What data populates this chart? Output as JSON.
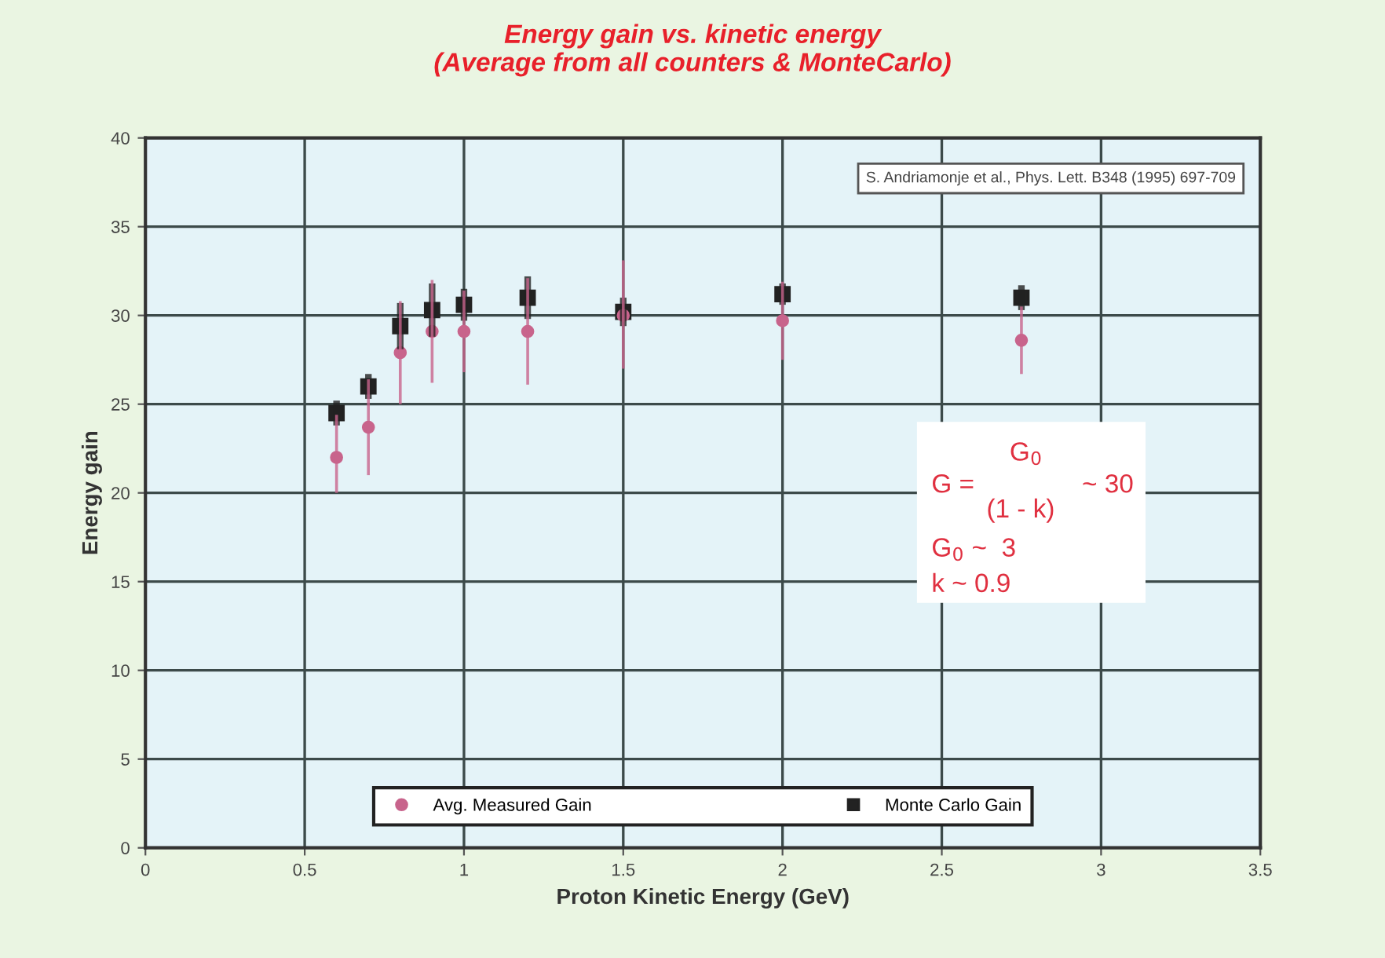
{
  "chart_data": {
    "type": "scatter",
    "title": "Energy gain vs. kinetic energy\n(Average from all counters & MonteCarlo)",
    "xlabel": "Proton Kinetic Energy (GeV)",
    "ylabel": "Energy gain",
    "x": [
      0.6,
      0.7,
      0.8,
      0.9,
      1.0,
      1.2,
      1.5,
      2.0,
      2.75
    ],
    "series": [
      {
        "name": "Avg. Measured Gain",
        "color": "#c8648c",
        "marker": "circle",
        "values": [
          22.0,
          23.7,
          27.9,
          29.1,
          29.1,
          29.1,
          30.0,
          29.7,
          28.6
        ],
        "errors": [
          [
            20.0,
            24.4
          ],
          [
            21.0,
            26.4
          ],
          [
            25.0,
            30.8
          ],
          [
            26.2,
            32.0
          ],
          [
            26.8,
            31.4
          ],
          [
            26.1,
            32.1
          ],
          [
            27.0,
            33.1
          ],
          [
            27.5,
            31.9
          ],
          [
            26.7,
            30.5
          ]
        ]
      },
      {
        "name": "Monte Carlo Gain",
        "color": "#222222",
        "marker": "square",
        "values": [
          24.5,
          26.0,
          29.4,
          30.3,
          30.6,
          31.0,
          30.2,
          31.2,
          31.0
        ],
        "errors": [
          0.7,
          0.7,
          1.3,
          1.5,
          0.9,
          1.2,
          0.8,
          0.6,
          0.7
        ]
      }
    ],
    "xlim": [
      0,
      3.5
    ],
    "xticks": [
      0,
      0.5,
      1,
      1.5,
      2,
      2.5,
      3,
      3.5
    ],
    "ylim": [
      0,
      40
    ],
    "yticks": [
      0,
      5,
      10,
      15,
      20,
      25,
      30,
      35,
      40
    ],
    "grid": true,
    "legend": "bottom",
    "annotations": [
      "S. Andriamonje et al., Phys. Lett. B348 (1995) 697-709",
      "G =",
      "G$_{0}$",
      "(1 - k)",
      "~ 30",
      "G$_{0}$ ~  3",
      "k ~ 0.9"
    ]
  }
}
